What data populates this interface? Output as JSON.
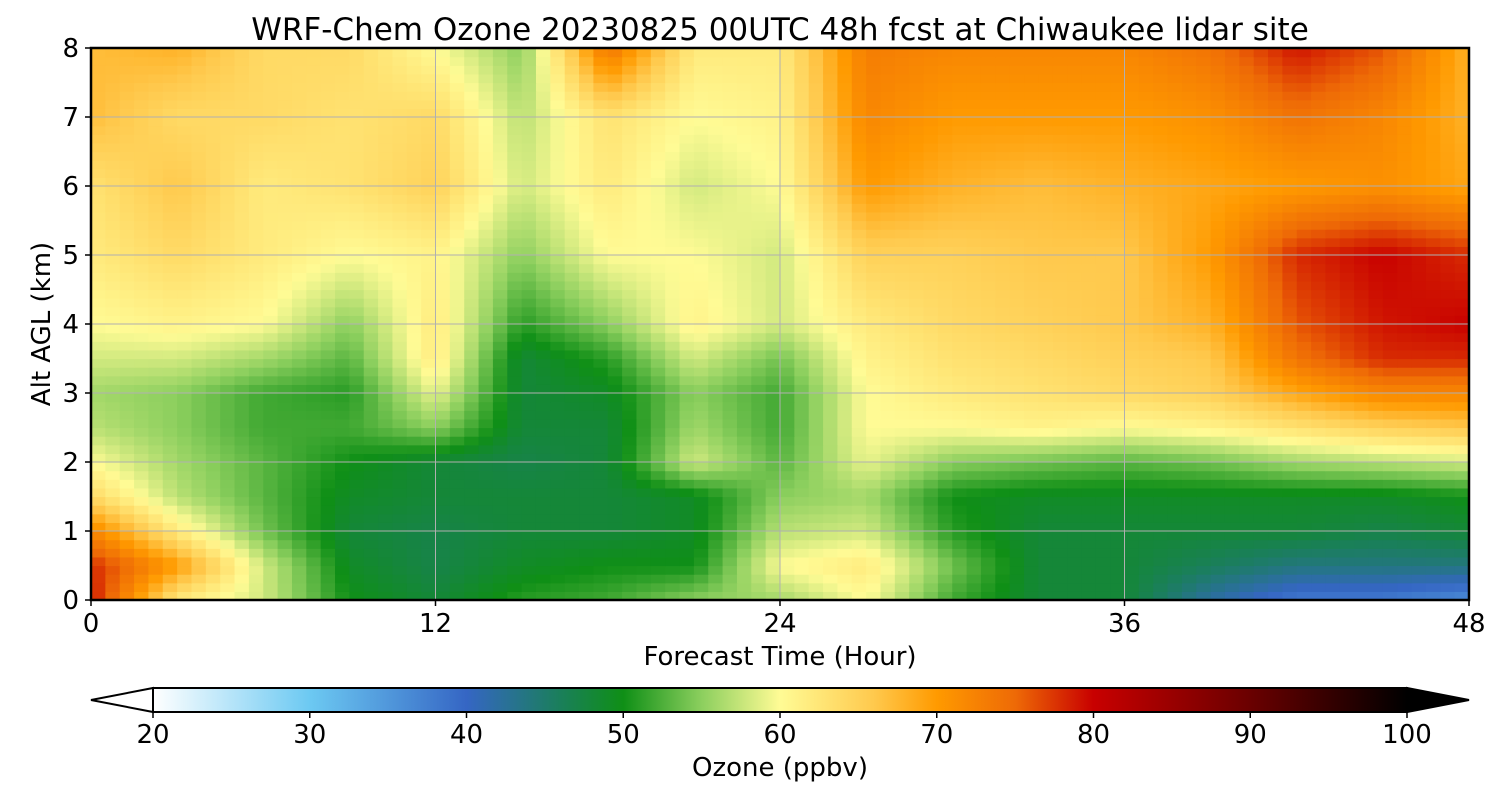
{
  "chart_data": {
    "type": "heatmap",
    "title": "WRF-Chem Ozone  20230825 00UTC 48h fcst at Chiwaukee lidar site",
    "xlabel": "Forecast Time (Hour)",
    "ylabel": "Alt AGL (km)",
    "xlim": [
      0,
      48
    ],
    "ylim": [
      0,
      8
    ],
    "x_ticks": [
      0,
      12,
      24,
      36,
      48
    ],
    "y_ticks": [
      0,
      1,
      2,
      3,
      4,
      5,
      6,
      7,
      8
    ],
    "grid": true,
    "x": [
      0,
      3,
      6,
      9,
      12,
      15,
      18,
      21,
      24,
      27,
      30,
      33,
      36,
      39,
      42,
      45,
      48
    ],
    "y": [
      0,
      0.5,
      1,
      1.5,
      2,
      2.5,
      3,
      3.5,
      4,
      5,
      6,
      7,
      8
    ],
    "z": [
      [
        79,
        62,
        58,
        50,
        48,
        51,
        52,
        55,
        56,
        60,
        52,
        48,
        48,
        42,
        38,
        38,
        36
      ],
      [
        78,
        70,
        58,
        49,
        47,
        49,
        50,
        50,
        60,
        62,
        54,
        48,
        48,
        46,
        44,
        44,
        44
      ],
      [
        72,
        62,
        54,
        48,
        47,
        48,
        48,
        49,
        57,
        58,
        51,
        48,
        48,
        48,
        48,
        47,
        48
      ],
      [
        64,
        57,
        53,
        49,
        48,
        48,
        48,
        49,
        55,
        56,
        50,
        49,
        49,
        49,
        49,
        49,
        50
      ],
      [
        60,
        56,
        53,
        50,
        48,
        47,
        48,
        58,
        53,
        59,
        55,
        54,
        53,
        54,
        56,
        57,
        58
      ],
      [
        57,
        55,
        52,
        52,
        55,
        48,
        48,
        56,
        52,
        60,
        60,
        61,
        60,
        61,
        63,
        65,
        66
      ],
      [
        56,
        55,
        52,
        51,
        59,
        48,
        49,
        55,
        52,
        60,
        62,
        63,
        64,
        65,
        69,
        72,
        72
      ],
      [
        58,
        58,
        56,
        53,
        62,
        48,
        51,
        58,
        54,
        61,
        63,
        64,
        65,
        66,
        74,
        78,
        78
      ],
      [
        60,
        61,
        60,
        55,
        62,
        51,
        55,
        61,
        58,
        62,
        64,
        65,
        66,
        68,
        76,
        79,
        80
      ],
      [
        62,
        64,
        62,
        60,
        61,
        55,
        60,
        60,
        58,
        65,
        65,
        66,
        66,
        70,
        78,
        80,
        78
      ],
      [
        63,
        66,
        62,
        63,
        65,
        58,
        62,
        58,
        60,
        70,
        68,
        67,
        68,
        69,
        70,
        71,
        69
      ],
      [
        67,
        64,
        64,
        63,
        64,
        57,
        63,
        60,
        61,
        72,
        70,
        70,
        70,
        71,
        74,
        72,
        68
      ],
      [
        67,
        68,
        64,
        64,
        60,
        55,
        74,
        62,
        62,
        73,
        72,
        72,
        72,
        74,
        79,
        76,
        68
      ]
    ],
    "colorbar": {
      "label": "Ozone  (ppbv)",
      "min": 20,
      "max": 100,
      "ticks": [
        "20",
        "30",
        "40",
        "50",
        "60",
        "70",
        "80",
        "90",
        "100"
      ],
      "extend": "both",
      "colors": [
        {
          "v": 20,
          "c": "#ffffff"
        },
        {
          "v": 30,
          "c": "#6cc9f2"
        },
        {
          "v": 40,
          "c": "#3566c4"
        },
        {
          "v": 46,
          "c": "#1a7f5a"
        },
        {
          "v": 50,
          "c": "#0f8f16"
        },
        {
          "v": 55,
          "c": "#8ccf5e"
        },
        {
          "v": 60,
          "c": "#fffb95"
        },
        {
          "v": 66,
          "c": "#ffc94d"
        },
        {
          "v": 70,
          "c": "#ff9a00"
        },
        {
          "v": 75,
          "c": "#ee6a06"
        },
        {
          "v": 80,
          "c": "#c80000"
        },
        {
          "v": 90,
          "c": "#6a0000"
        },
        {
          "v": 100,
          "c": "#000000"
        }
      ]
    }
  }
}
